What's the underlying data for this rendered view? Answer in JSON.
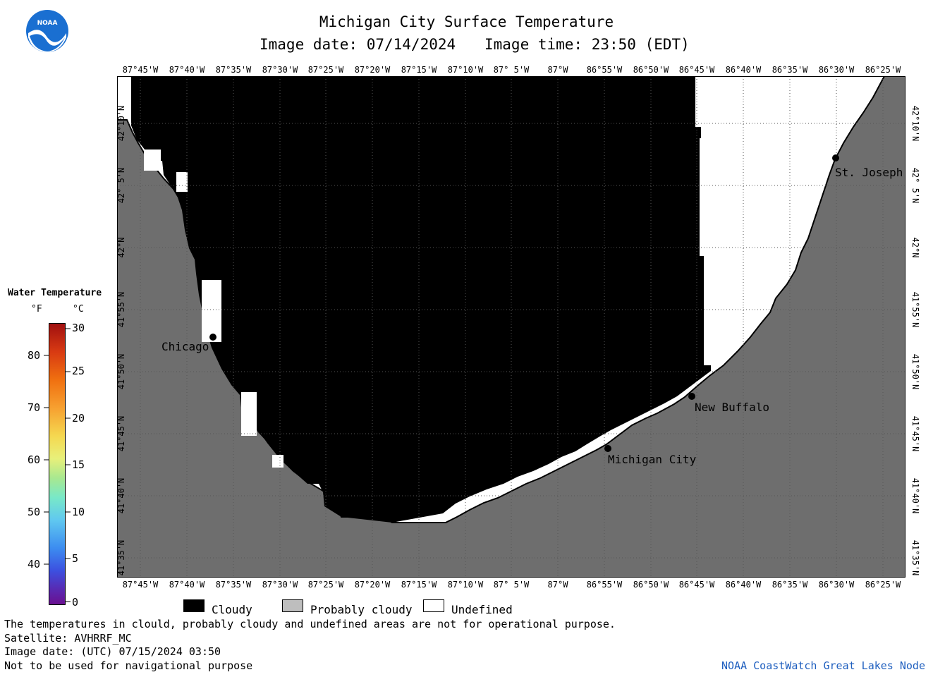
{
  "title": "Michigan City Surface Temperature",
  "subtitle_date": "Image date: 07/14/2024",
  "subtitle_time": "Image time: 23:50 (EDT)",
  "logo_text": "NOAA",
  "lon_ticks": [
    "87°45'W",
    "87°40'W",
    "87°35'W",
    "87°30'W",
    "87°25'W",
    "87°20'W",
    "87°15'W",
    "87°10'W",
    "87° 5'W",
    "87°W",
    "86°55'W",
    "86°50'W",
    "86°45'W",
    "86°40'W",
    "86°35'W",
    "86°30'W",
    "86°25'W"
  ],
  "lat_ticks": [
    "42°10'N",
    "42° 5'N",
    "42°N",
    "41°55'N",
    "41°50'N",
    "41°45'N",
    "41°40'N",
    "41°35'N"
  ],
  "cities": {
    "chicago": "Chicago",
    "st_joseph": "St. Joseph",
    "new_buffalo": "New Buffalo",
    "michigan_city": "Michigan City"
  },
  "legend": {
    "title": "Water Temperature",
    "unit_f": "°F",
    "unit_c": "°C",
    "f_ticks": [
      "80",
      "70",
      "60",
      "50",
      "40"
    ],
    "c_ticks": [
      "30",
      "25",
      "20",
      "15",
      "10",
      "5",
      "0"
    ]
  },
  "key": {
    "cloudy": "Cloudy",
    "probably_cloudy": "Probably cloudy",
    "undefined": "Undefined"
  },
  "footer": {
    "line1": "The temperatures in clould, probably cloudy and undefined areas are not for operational purpose.",
    "line2": "Satellite: AVHRRF_MC",
    "line3": "Image date: (UTC) 07/15/2024  03:50",
    "line4": "Not to be used for navigational purpose",
    "credit": "NOAA CoastWatch Great Lakes Node"
  },
  "colors": {
    "land": "#6e6e6e",
    "cloud": "#000000",
    "undefined": "#ffffff",
    "probably_cloudy": "#bebebe",
    "credit": "#1f5fbf",
    "logo_blue": "#1a6fd1"
  }
}
